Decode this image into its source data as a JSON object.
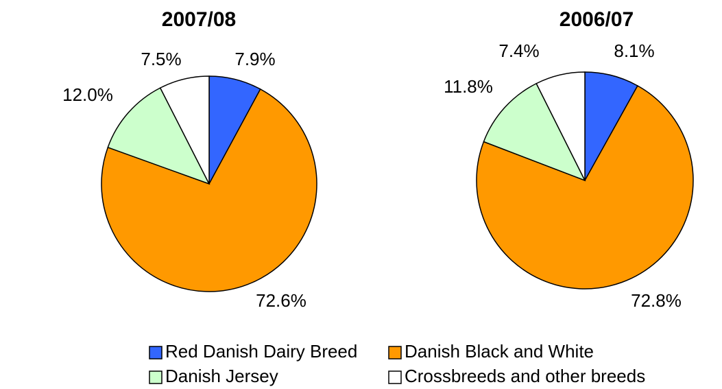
{
  "chart_data": [
    {
      "type": "pie",
      "title": "2007/08",
      "values": [
        7.9,
        72.6,
        12.0,
        7.5
      ],
      "value_labels": [
        "7.9%",
        "72.6%",
        "12.0%",
        "7.5%"
      ]
    },
    {
      "type": "pie",
      "title": "2006/07",
      "values": [
        8.1,
        72.8,
        11.8,
        7.4
      ],
      "value_labels": [
        "8.1%",
        "72.8%",
        "11.8%",
        "7.4%"
      ]
    }
  ],
  "legend": {
    "labels": [
      "Red Danish Dairy Breed",
      "Danish Black and White",
      "Danish Jersey",
      "Crossbreeds and other breeds"
    ],
    "colors": [
      "#3366ff",
      "#ff9900",
      "#ccffcc",
      "#ffffff"
    ]
  }
}
